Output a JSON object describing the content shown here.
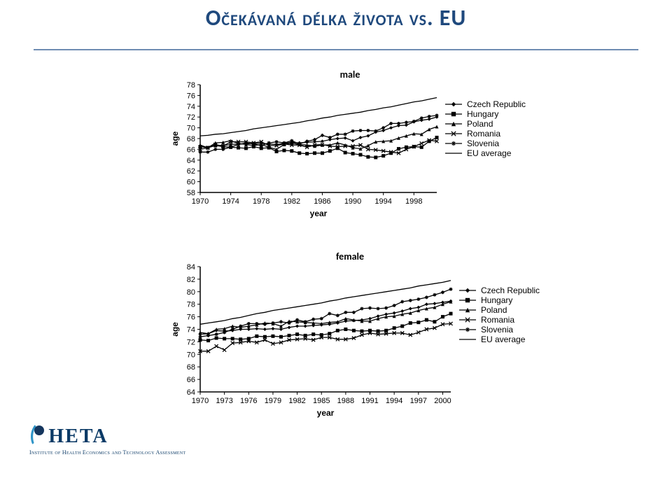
{
  "title": {
    "text": "Očekávaná délka života vs. EU",
    "color": "#1f497d",
    "fontsize": 32
  },
  "rule_color": "#6f8db3",
  "charts": {
    "male": {
      "title": "male",
      "title_fontsize": 14,
      "xlabel": "year",
      "ylabel": "age",
      "label_fontsize": 12,
      "xlim": [
        1970,
        2001
      ],
      "ylim": [
        58,
        78
      ],
      "ytick_step": 2,
      "xtick_step": 4,
      "xticks": [
        1970,
        1974,
        1978,
        1982,
        1986,
        1990,
        1994,
        1998
      ],
      "yticks": [
        58,
        60,
        62,
        64,
        66,
        68,
        70,
        72,
        74,
        76,
        78
      ],
      "plot_bg": "#ffffff",
      "axis_color": "#000000",
      "tick_fontsize": 11,
      "legend": [
        {
          "label": "Czech Republic",
          "marker": "diamond"
        },
        {
          "label": "Hungary",
          "marker": "square"
        },
        {
          "label": "Poland",
          "marker": "triangle"
        },
        {
          "label": "Romania",
          "marker": "x"
        },
        {
          "label": "Slovenia",
          "marker": "asterisk"
        },
        {
          "label": "EU average",
          "marker": "line"
        }
      ],
      "series": {
        "Czech Republic": {
          "marker": "diamond",
          "color": "#000000",
          "vals": {
            "1970": 66.5,
            "1971": 66.3,
            "1972": 66.8,
            "1973": 66.7,
            "1974": 66.9,
            "1975": 67.0,
            "1976": 67.0,
            "1977": 67.1,
            "1978": 67.1,
            "1979": 67.0,
            "1980": 66.9,
            "1981": 67.1,
            "1982": 67.3,
            "1983": 67.2,
            "1984": 67.3,
            "1985": 67.4,
            "1986": 67.5,
            "1987": 67.8,
            "1988": 68.0,
            "1989": 68.1,
            "1990": 67.6,
            "1991": 68.2,
            "1992": 68.5,
            "1993": 69.2,
            "1994": 69.5,
            "1995": 70.0,
            "1996": 70.4,
            "1997": 70.5,
            "1998": 71.1,
            "1999": 71.4,
            "2000": 71.6,
            "2001": 72.0
          }
        },
        "Hungary": {
          "marker": "square",
          "color": "#000000",
          "vals": {
            "1970": 66.5,
            "1971": 66.3,
            "1972": 66.7,
            "1973": 66.5,
            "1974": 66.4,
            "1975": 66.3,
            "1976": 66.2,
            "1977": 66.5,
            "1978": 66.2,
            "1979": 66.3,
            "1980": 65.6,
            "1981": 65.8,
            "1982": 65.7,
            "1983": 65.3,
            "1984": 65.2,
            "1985": 65.3,
            "1986": 65.3,
            "1987": 65.7,
            "1988": 66.2,
            "1989": 65.4,
            "1990": 65.2,
            "1991": 65.0,
            "1992": 64.6,
            "1993": 64.5,
            "1994": 64.8,
            "1995": 65.3,
            "1996": 66.1,
            "1997": 66.4,
            "1998": 66.5,
            "1999": 66.4,
            "2000": 67.5,
            "2001": 68.2
          }
        },
        "Poland": {
          "marker": "triangle",
          "color": "#000000",
          "vals": {
            "1970": 66.8,
            "1971": 66.3,
            "1972": 67.2,
            "1973": 67.3,
            "1974": 67.6,
            "1975": 67.1,
            "1976": 66.9,
            "1977": 66.7,
            "1978": 66.9,
            "1979": 66.4,
            "1980": 66.0,
            "1981": 66.9,
            "1982": 67.2,
            "1983": 66.9,
            "1984": 66.8,
            "1985": 66.6,
            "1986": 66.8,
            "1987": 66.8,
            "1988": 67.2,
            "1989": 66.8,
            "1990": 66.3,
            "1991": 66.1,
            "1992": 66.7,
            "1993": 67.4,
            "1994": 67.5,
            "1995": 67.6,
            "1996": 68.1,
            "1997": 68.5,
            "1998": 68.9,
            "1999": 68.8,
            "2000": 69.7,
            "2001": 70.2
          }
        },
        "Romania": {
          "marker": "x",
          "color": "#000000",
          "vals": {
            "1970": 66.0,
            "1971": 66.3,
            "1972": 66.9,
            "1973": 66.6,
            "1974": 67.4,
            "1975": 67.4,
            "1976": 67.4,
            "1977": 67.2,
            "1978": 67.4,
            "1979": 66.7,
            "1980": 66.7,
            "1981": 67.0,
            "1982": 66.8,
            "1983": 66.8,
            "1984": 66.4,
            "1985": 66.8,
            "1986": 66.9,
            "1987": 66.6,
            "1988": 66.5,
            "1989": 66.6,
            "1990": 66.6,
            "1991": 66.8,
            "1992": 66.0,
            "1993": 65.9,
            "1994": 65.7,
            "1995": 65.5,
            "1996": 65.3,
            "1997": 66.0,
            "1998": 66.5,
            "1999": 67.1,
            "2000": 67.7,
            "2001": 67.5
          }
        },
        "Slovenia": {
          "marker": "asterisk",
          "color": "#000000",
          "vals": {
            "1970": 65.5,
            "1971": 65.5,
            "1972": 66.0,
            "1973": 66.0,
            "1974": 66.4,
            "1975": 66.9,
            "1976": 67.2,
            "1977": 67.0,
            "1978": 66.7,
            "1979": 67.2,
            "1980": 67.4,
            "1981": 67.2,
            "1982": 67.6,
            "1983": 67.0,
            "1984": 67.5,
            "1985": 67.8,
            "1986": 68.6,
            "1987": 68.2,
            "1988": 68.8,
            "1989": 68.8,
            "1990": 69.4,
            "1991": 69.5,
            "1992": 69.5,
            "1993": 69.4,
            "1994": 70.0,
            "1995": 70.8,
            "1996": 70.8,
            "1997": 71.0,
            "1998": 71.2,
            "1999": 71.8,
            "2000": 72.1,
            "2001": 72.3
          }
        },
        "EU average": {
          "marker": "line",
          "color": "#000000",
          "vals": {
            "1970": 68.5,
            "1971": 68.6,
            "1972": 68.8,
            "1973": 68.9,
            "1974": 69.1,
            "1975": 69.3,
            "1976": 69.5,
            "1977": 69.8,
            "1978": 70.0,
            "1979": 70.2,
            "1980": 70.4,
            "1981": 70.6,
            "1982": 70.8,
            "1983": 71.0,
            "1984": 71.3,
            "1985": 71.5,
            "1986": 71.8,
            "1987": 72.0,
            "1988": 72.3,
            "1989": 72.5,
            "1990": 72.7,
            "1991": 72.9,
            "1992": 73.2,
            "1993": 73.4,
            "1994": 73.7,
            "1995": 73.9,
            "1996": 74.2,
            "1997": 74.5,
            "1998": 74.8,
            "1999": 75.0,
            "2000": 75.3,
            "2001": 75.6
          }
        }
      }
    },
    "female": {
      "title": "female",
      "title_fontsize": 14,
      "xlabel": "year",
      "ylabel": "age",
      "label_fontsize": 12,
      "xlim": [
        1970,
        2001
      ],
      "ylim": [
        64,
        84
      ],
      "ytick_step": 2,
      "xtick_step": 3,
      "xticks": [
        1970,
        1973,
        1976,
        1979,
        1982,
        1985,
        1988,
        1991,
        1994,
        1997,
        2000
      ],
      "yticks": [
        64,
        66,
        68,
        70,
        72,
        74,
        76,
        78,
        80,
        82,
        84
      ],
      "plot_bg": "#ffffff",
      "axis_color": "#000000",
      "tick_fontsize": 11,
      "legend": [
        {
          "label": "Czech Republic",
          "marker": "diamond"
        },
        {
          "label": "Hungary",
          "marker": "square"
        },
        {
          "label": "Poland",
          "marker": "triangle"
        },
        {
          "label": "Romania",
          "marker": "x"
        },
        {
          "label": "Slovenia",
          "marker": "asterisk"
        },
        {
          "label": "EU average",
          "marker": "line"
        }
      ],
      "series": {
        "Czech Republic": {
          "marker": "diamond",
          "color": "#000000",
          "vals": {
            "1970": 73.2,
            "1971": 73.3,
            "1972": 73.8,
            "1973": 73.7,
            "1974": 73.8,
            "1975": 74.0,
            "1976": 74.0,
            "1977": 74.1,
            "1978": 74.0,
            "1979": 74.1,
            "1980": 74.0,
            "1981": 74.3,
            "1982": 74.5,
            "1983": 74.5,
            "1984": 74.6,
            "1985": 74.7,
            "1986": 74.8,
            "1987": 75.0,
            "1988": 75.3,
            "1989": 75.4,
            "1990": 75.5,
            "1991": 75.7,
            "1992": 76.1,
            "1993": 76.4,
            "1994": 76.6,
            "1995": 76.9,
            "1996": 77.3,
            "1997": 77.5,
            "1998": 78.0,
            "1999": 78.1,
            "2000": 78.3,
            "2001": 78.5
          }
        },
        "Hungary": {
          "marker": "square",
          "color": "#000000",
          "vals": {
            "1970": 72.3,
            "1971": 72.2,
            "1972": 72.6,
            "1973": 72.5,
            "1974": 72.5,
            "1975": 72.4,
            "1976": 72.5,
            "1977": 72.9,
            "1978": 72.8,
            "1979": 72.9,
            "1980": 72.8,
            "1981": 73.0,
            "1982": 73.2,
            "1983": 73.0,
            "1984": 73.2,
            "1985": 73.1,
            "1986": 73.3,
            "1987": 73.8,
            "1988": 74.0,
            "1989": 73.8,
            "1990": 73.7,
            "1991": 73.8,
            "1992": 73.7,
            "1993": 73.8,
            "1994": 74.2,
            "1995": 74.5,
            "1996": 75.0,
            "1997": 75.1,
            "1998": 75.5,
            "1999": 75.2,
            "2000": 76.0,
            "2001": 76.5
          }
        },
        "Poland": {
          "marker": "triangle",
          "color": "#000000",
          "vals": {
            "1970": 73.5,
            "1971": 73.3,
            "1972": 74.0,
            "1973": 74.1,
            "1974": 74.5,
            "1975": 74.3,
            "1976": 74.5,
            "1977": 74.7,
            "1978": 75.0,
            "1979": 74.9,
            "1980": 74.5,
            "1981": 75.3,
            "1982": 75.2,
            "1983": 75.1,
            "1984": 75.0,
            "1985": 74.9,
            "1986": 75.1,
            "1987": 75.2,
            "1988": 75.7,
            "1989": 75.5,
            "1990": 75.3,
            "1991": 75.3,
            "1992": 75.7,
            "1993": 76.0,
            "1994": 76.1,
            "1995": 76.4,
            "1996": 76.6,
            "1997": 77.0,
            "1998": 77.3,
            "1999": 77.5,
            "2000": 78.0,
            "2001": 78.4
          }
        },
        "Romania": {
          "marker": "x",
          "color": "#000000",
          "vals": {
            "1970": 70.5,
            "1971": 70.5,
            "1972": 71.3,
            "1973": 70.7,
            "1974": 71.8,
            "1975": 71.9,
            "1976": 72.1,
            "1977": 71.9,
            "1978": 72.3,
            "1979": 71.7,
            "1980": 71.9,
            "1981": 72.3,
            "1982": 72.4,
            "1983": 72.5,
            "1984": 72.3,
            "1985": 72.7,
            "1986": 72.7,
            "1987": 72.4,
            "1988": 72.4,
            "1989": 72.6,
            "1990": 73.1,
            "1991": 73.4,
            "1992": 73.2,
            "1993": 73.3,
            "1994": 73.4,
            "1995": 73.4,
            "1996": 73.1,
            "1997": 73.5,
            "1998": 74.0,
            "1999": 74.2,
            "2000": 74.8,
            "2001": 74.9
          }
        },
        "Slovenia": {
          "marker": "asterisk",
          "color": "#000000",
          "vals": {
            "1970": 72.8,
            "1971": 73.0,
            "1972": 73.2,
            "1973": 73.5,
            "1974": 74.0,
            "1975": 74.5,
            "1976": 74.9,
            "1977": 74.9,
            "1978": 74.8,
            "1979": 75.0,
            "1980": 75.2,
            "1981": 75.0,
            "1982": 75.5,
            "1983": 75.2,
            "1984": 75.6,
            "1985": 75.7,
            "1986": 76.5,
            "1987": 76.2,
            "1988": 76.7,
            "1989": 76.7,
            "1990": 77.3,
            "1991": 77.4,
            "1992": 77.3,
            "1993": 77.4,
            "1994": 77.8,
            "1995": 78.4,
            "1996": 78.6,
            "1997": 78.8,
            "1998": 79.1,
            "1999": 79.5,
            "2000": 79.9,
            "2001": 80.4
          }
        },
        "EU average": {
          "marker": "line",
          "color": "#000000",
          "vals": {
            "1970": 74.8,
            "1971": 75.0,
            "1972": 75.2,
            "1973": 75.4,
            "1974": 75.7,
            "1975": 75.9,
            "1976": 76.2,
            "1977": 76.5,
            "1978": 76.7,
            "1979": 77.0,
            "1980": 77.2,
            "1981": 77.4,
            "1982": 77.6,
            "1983": 77.8,
            "1984": 78.0,
            "1985": 78.2,
            "1986": 78.5,
            "1987": 78.7,
            "1988": 79.0,
            "1989": 79.2,
            "1990": 79.4,
            "1991": 79.6,
            "1992": 79.8,
            "1993": 80.0,
            "1994": 80.2,
            "1995": 80.4,
            "1996": 80.6,
            "1997": 80.9,
            "1998": 81.1,
            "1999": 81.3,
            "2000": 81.5,
            "2001": 81.8
          }
        }
      }
    }
  },
  "legend_fontsize": 12,
  "logo": {
    "swoosh_color": "#2f95c8",
    "dot_color": "#15365e",
    "text": "HETA",
    "text_color": "#0b3a66",
    "text_fontsize": 28,
    "subtitle": "Institute of Health Economics and Technology Assessment"
  }
}
